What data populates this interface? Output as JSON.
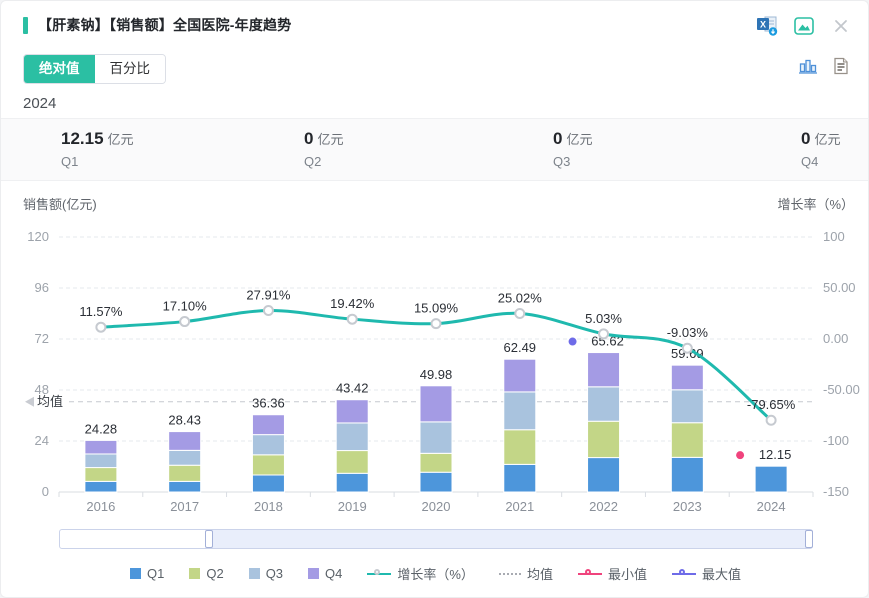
{
  "header": {
    "title": "【肝素钠】【销售额】全国医院-年度趋势"
  },
  "view_toggle": {
    "options": [
      {
        "label": "绝对值",
        "active": true
      },
      {
        "label": "百分比",
        "active": false
      }
    ]
  },
  "current_year": "2024",
  "summary": {
    "items": [
      {
        "value": "12.15",
        "unit": "亿元",
        "label": "Q1"
      },
      {
        "value": "0",
        "unit": "亿元",
        "label": "Q2"
      },
      {
        "value": "0",
        "unit": "亿元",
        "label": "Q3"
      },
      {
        "value": "0",
        "unit": "亿元",
        "label": "Q4"
      }
    ]
  },
  "chart_data": {
    "type": "bar",
    "subtype": "stacked quarterly bars with growth-rate line overlay",
    "categories": [
      "2016",
      "2017",
      "2018",
      "2019",
      "2020",
      "2021",
      "2022",
      "2023",
      "2024"
    ],
    "series": [
      {
        "name": "Q1",
        "color": "#4D96DB",
        "values": [
          5.0,
          5.0,
          8.0,
          8.8,
          9.3,
          13.0,
          16.2,
          16.3,
          12.15
        ]
      },
      {
        "name": "Q2",
        "color": "#C3D687",
        "values": [
          6.5,
          7.6,
          9.5,
          10.7,
          8.9,
          16.3,
          17.1,
          16.3,
          0
        ]
      },
      {
        "name": "Q3",
        "color": "#A9C3DE",
        "values": [
          6.4,
          7.0,
          9.5,
          13.0,
          14.8,
          17.8,
          16.2,
          15.5,
          0
        ]
      },
      {
        "name": "Q4",
        "color": "#A49BE4",
        "values": [
          6.38,
          8.83,
          9.36,
          10.92,
          16.98,
          15.39,
          16.12,
          11.59,
          0
        ]
      }
    ],
    "series_values_estimated_from_pixels": true,
    "totals": [
      24.28,
      28.43,
      36.36,
      43.42,
      49.98,
      62.49,
      65.62,
      59.69,
      12.15
    ],
    "total_labels": [
      "24.28",
      "28.43",
      "36.36",
      "43.42",
      "49.98",
      "62.49",
      "65.62",
      "59.69",
      "12.15"
    ],
    "growth": {
      "name": "增长率（%）",
      "color": "#1FB9AE",
      "values": [
        11.57,
        17.1,
        27.91,
        19.42,
        15.09,
        25.02,
        5.03,
        -9.03,
        -79.65
      ],
      "labels": [
        "11.57%",
        "17.10%",
        "27.91%",
        "19.42%",
        "15.09%",
        "25.02%",
        "5.03%",
        "-9.03%",
        "-79.65%"
      ]
    },
    "left_axis": {
      "title": "销售额(亿元)",
      "ticks": [
        0,
        24,
        48,
        72,
        96,
        120
      ],
      "range": [
        0,
        120
      ]
    },
    "right_axis": {
      "title": "增长率（%）",
      "tick_labels_top_to_bottom": [
        "100",
        "50.00",
        "0.00",
        "-50.00",
        "-100",
        "-150"
      ],
      "range": [
        -150,
        100
      ]
    },
    "mean": {
      "label": "均值",
      "value": 42.49
    },
    "min_marker": {
      "label": "最小值",
      "category": "2024",
      "value": 12.15,
      "color": "#F0437D"
    },
    "max_marker": {
      "label": "最大值",
      "category": "2022",
      "value": 65.62,
      "color": "#6E6BE8"
    },
    "grid": "horizontal dashed gridlines",
    "legend_position": "bottom"
  },
  "legend": {
    "items": [
      {
        "label": "Q1",
        "swatch": "square",
        "color": "#4D96DB"
      },
      {
        "label": "Q2",
        "swatch": "square",
        "color": "#C3D687"
      },
      {
        "label": "Q3",
        "swatch": "square",
        "color": "#A9C3DE"
      },
      {
        "label": "Q4",
        "swatch": "square",
        "color": "#A49BE4"
      },
      {
        "label": "增长率（%）",
        "swatch": "line-circle",
        "color": "#1FB9AE",
        "ring": "#C6CAD0"
      },
      {
        "label": "均值",
        "swatch": "dashed-line",
        "color": "#A8ABB2"
      },
      {
        "label": "最小值",
        "swatch": "line-circle",
        "color": "#F0437D",
        "ring": "#F0437D"
      },
      {
        "label": "最大值",
        "swatch": "line-circle",
        "color": "#6E6BE8",
        "ring": "#6E6BE8"
      }
    ]
  },
  "colors": {
    "accent": "#2BBFA3",
    "axis_text": "#9DA3AB",
    "label_text": "#2B2F36"
  }
}
